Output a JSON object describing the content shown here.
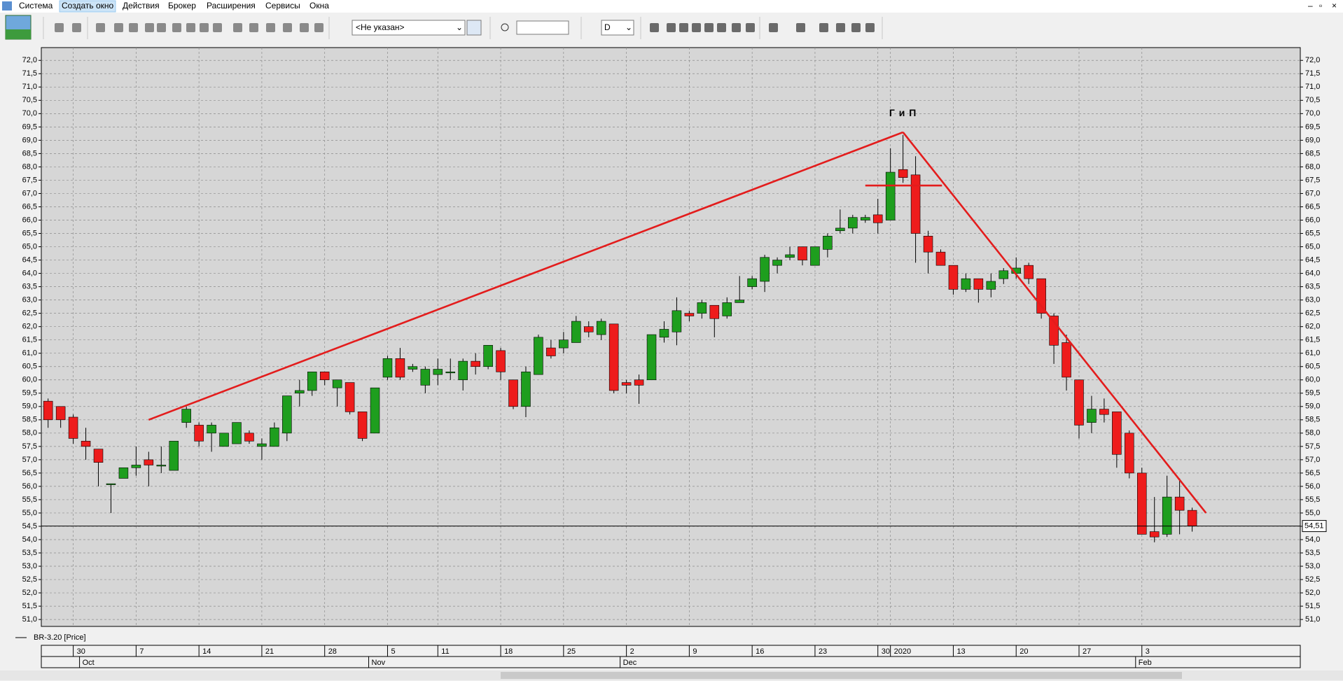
{
  "menu": [
    "Система",
    "Создать окно",
    "Действия",
    "Брокер",
    "Расширения",
    "Сервисы",
    "Окна"
  ],
  "toolbar": {
    "account": "<Не указан>",
    "period": "D"
  },
  "chart_data": {
    "type": "candlestick",
    "series": [
      {
        "name": "BR-3.20 [Price]",
        "up_color": "#1e9e1e",
        "down_color": "#ee1c1c",
        "open": [
          59.2,
          59.0,
          58.6,
          57.7,
          57.4,
          56.1,
          56.3,
          56.7,
          57.0,
          56.8,
          56.6,
          58.4,
          58.3,
          58.0,
          57.5,
          57.6,
          58.0,
          57.5,
          57.5,
          58.0,
          59.5,
          59.6,
          60.3,
          59.7,
          59.9,
          58.8,
          58.0,
          60.1,
          60.8,
          60.4,
          59.8,
          60.2,
          60.3,
          60.0,
          60.7,
          60.5,
          61.1,
          60.0,
          59.0,
          60.2,
          61.2,
          61.2,
          61.4,
          62.0,
          61.7,
          62.1,
          59.9,
          60.0,
          60.0,
          61.6,
          61.8,
          62.5,
          62.5,
          62.8,
          62.4,
          62.9,
          63.5,
          63.7,
          64.3,
          64.6,
          65.0,
          64.3,
          64.9,
          65.6,
          65.7,
          66.0,
          66.2,
          66.0,
          67.9,
          67.7,
          65.4,
          64.8,
          64.3,
          63.4,
          63.8,
          63.4,
          63.8,
          64.0,
          64.3,
          63.8,
          62.4,
          61.4,
          60.0,
          58.4,
          58.9,
          58.8,
          58.0,
          56.5,
          54.3,
          54.2,
          55.6,
          55.1
        ],
        "high": [
          59.3,
          59.0,
          58.7,
          58.2,
          57.4,
          56.1,
          56.7,
          57.5,
          57.3,
          57.5,
          57.7,
          59.0,
          58.4,
          58.4,
          58.0,
          58.4,
          58.1,
          57.8,
          58.4,
          59.4,
          60.0,
          60.3,
          60.3,
          60.0,
          59.9,
          58.8,
          59.7,
          60.9,
          61.2,
          60.6,
          60.5,
          60.8,
          60.8,
          60.8,
          61.0,
          61.3,
          61.2,
          60.0,
          60.5,
          61.7,
          61.5,
          61.8,
          62.4,
          62.2,
          62.3,
          62.1,
          60.0,
          60.2,
          61.7,
          62.2,
          63.1,
          62.6,
          63.0,
          62.8,
          63.1,
          63.9,
          63.9,
          64.7,
          64.6,
          65.0,
          65.0,
          65.0,
          65.5,
          66.4,
          66.2,
          66.2,
          66.8,
          68.7,
          69.2,
          68.4,
          65.6,
          64.9,
          64.3,
          64.0,
          63.8,
          64.0,
          64.2,
          64.6,
          64.4,
          63.8,
          62.5,
          61.7,
          60.0,
          59.4,
          59.3,
          58.8,
          58.1,
          56.7,
          55.6,
          56.4,
          56.3,
          55.2
        ],
        "low": [
          58.2,
          58.2,
          57.6,
          57.0,
          56.0,
          55.0,
          56.3,
          56.4,
          56.0,
          56.5,
          56.6,
          58.2,
          57.5,
          57.3,
          57.5,
          57.6,
          57.6,
          57.0,
          57.5,
          57.7,
          59.0,
          59.4,
          59.8,
          59.0,
          58.7,
          57.7,
          58.0,
          60.0,
          60.0,
          60.3,
          59.5,
          59.8,
          60.0,
          59.6,
          60.2,
          60.4,
          60.0,
          58.9,
          58.6,
          60.2,
          60.8,
          61.0,
          61.4,
          61.6,
          61.5,
          59.5,
          59.5,
          59.1,
          60.0,
          61.4,
          61.3,
          62.2,
          62.3,
          61.6,
          62.3,
          62.9,
          63.4,
          63.3,
          64.0,
          64.5,
          64.3,
          64.3,
          64.6,
          65.5,
          65.5,
          65.9,
          65.5,
          66.0,
          67.4,
          64.4,
          64.0,
          64.3,
          63.2,
          63.3,
          62.9,
          63.1,
          63.6,
          63.8,
          63.6,
          62.3,
          60.6,
          59.6,
          57.8,
          58.0,
          58.4,
          56.7,
          56.3,
          54.2,
          53.9,
          54.1,
          54.2,
          54.3
        ],
        "close": [
          58.5,
          58.5,
          57.8,
          57.5,
          56.9,
          56.1,
          56.7,
          56.8,
          56.8,
          56.8,
          57.7,
          58.9,
          57.7,
          58.3,
          58.0,
          58.4,
          57.7,
          57.6,
          58.2,
          59.4,
          59.6,
          60.3,
          60.0,
          60.0,
          58.8,
          57.8,
          59.7,
          60.8,
          60.1,
          60.5,
          60.4,
          60.4,
          60.3,
          60.7,
          60.5,
          61.3,
          60.3,
          59.0,
          60.3,
          61.6,
          60.9,
          61.5,
          62.2,
          61.8,
          62.2,
          59.6,
          59.8,
          59.8,
          61.7,
          61.9,
          62.6,
          62.4,
          62.9,
          62.3,
          62.9,
          63.0,
          63.8,
          64.6,
          64.5,
          64.7,
          64.5,
          65.0,
          65.4,
          65.7,
          66.1,
          66.1,
          65.9,
          67.8,
          67.6,
          65.5,
          64.8,
          64.3,
          63.4,
          63.8,
          63.4,
          63.7,
          64.1,
          64.2,
          63.8,
          62.5,
          61.3,
          60.1,
          58.3,
          58.9,
          58.7,
          57.2,
          56.5,
          54.2,
          54.1,
          55.6,
          55.1,
          54.51
        ]
      }
    ],
    "categories": [
      null,
      null,
      "30",
      null,
      null,
      null,
      null,
      "7",
      null,
      null,
      null,
      null,
      "14",
      null,
      null,
      null,
      null,
      "21",
      null,
      null,
      null,
      null,
      "28",
      null,
      null,
      null,
      null,
      "5",
      null,
      null,
      null,
      "11",
      null,
      null,
      null,
      null,
      "18",
      null,
      null,
      null,
      null,
      "25",
      null,
      null,
      null,
      null,
      "2",
      null,
      null,
      null,
      null,
      "9",
      null,
      null,
      null,
      null,
      "16",
      null,
      null,
      null,
      null,
      "23",
      null,
      null,
      null,
      null,
      "30",
      "2020",
      null,
      null,
      null,
      null,
      "13",
      null,
      null,
      null,
      null,
      "20",
      null,
      null,
      null,
      null,
      "27",
      null,
      null,
      null,
      null,
      "3",
      null,
      null,
      null,
      null
    ],
    "month_labels": [
      null,
      null,
      null,
      "Oct",
      null,
      null,
      null,
      null,
      null,
      null,
      null,
      null,
      null,
      null,
      null,
      null,
      null,
      null,
      null,
      null,
      null,
      null,
      null,
      null,
      null,
      null,
      "Nov",
      null,
      null,
      null,
      null,
      null,
      null,
      null,
      null,
      null,
      null,
      null,
      null,
      null,
      null,
      null,
      null,
      null,
      null,
      null,
      "Dec",
      null,
      null,
      null,
      null,
      null,
      null,
      null,
      null,
      null,
      null,
      null,
      null,
      null,
      null,
      null,
      null,
      null,
      null,
      null,
      null,
      null,
      null,
      null,
      null,
      null,
      null,
      null,
      null,
      null,
      null,
      null,
      null,
      null,
      null,
      null,
      null,
      null,
      null,
      null,
      null,
      "Feb",
      null,
      null,
      null,
      null
    ],
    "xlim": [
      -0.54,
      99.6
    ],
    "ylim": [
      50.74,
      72.48
    ],
    "yticks": [
      {
        "value": 51,
        "label": "51,0"
      },
      {
        "value": 51.5,
        "label": "51,5"
      },
      {
        "value": 52,
        "label": "52,0"
      },
      {
        "value": 52.5,
        "label": "52,5"
      },
      {
        "value": 53,
        "label": "53,0"
      },
      {
        "value": 53.5,
        "label": "53,5"
      },
      {
        "value": 54,
        "label": "54,0"
      },
      {
        "value": 54.5,
        "label": "54,5"
      },
      {
        "value": 55,
        "label": "55,0"
      },
      {
        "value": 55.5,
        "label": "55,5"
      },
      {
        "value": 56,
        "label": "56,0"
      },
      {
        "value": 56.5,
        "label": "56,5"
      },
      {
        "value": 57,
        "label": "57,0"
      },
      {
        "value": 57.5,
        "label": "57,5"
      },
      {
        "value": 58,
        "label": "58,0"
      },
      {
        "value": 58.5,
        "label": "58,5"
      },
      {
        "value": 59,
        "label": "59,0"
      },
      {
        "value": 59.5,
        "label": "59,5"
      },
      {
        "value": 60,
        "label": "60,0"
      },
      {
        "value": 60.5,
        "label": "60,5"
      },
      {
        "value": 61,
        "label": "61,0"
      },
      {
        "value": 61.5,
        "label": "61,5"
      },
      {
        "value": 62,
        "label": "62,0"
      },
      {
        "value": 62.5,
        "label": "62,5"
      },
      {
        "value": 63,
        "label": "63,0"
      },
      {
        "value": 63.5,
        "label": "63,5"
      },
      {
        "value": 64,
        "label": "64,0"
      },
      {
        "value": 64.5,
        "label": "64,5"
      },
      {
        "value": 65,
        "label": "65,0"
      },
      {
        "value": 65.5,
        "label": "65,5"
      },
      {
        "value": 66,
        "label": "66,0"
      },
      {
        "value": 66.5,
        "label": "66,5"
      },
      {
        "value": 67,
        "label": "67,0"
      },
      {
        "value": 67.5,
        "label": "67,5"
      },
      {
        "value": 68,
        "label": "68,0"
      },
      {
        "value": 68.5,
        "label": "68,5"
      },
      {
        "value": 69,
        "label": "69,0"
      },
      {
        "value": 69.5,
        "label": "69,5"
      },
      {
        "value": 70,
        "label": "70,0"
      },
      {
        "value": 70.5,
        "label": "70,5"
      },
      {
        "value": 71,
        "label": "71,0"
      },
      {
        "value": 71.5,
        "label": "71,5"
      },
      {
        "value": 72,
        "label": "72,0"
      }
    ],
    "grid": true,
    "last_price": {
      "value": 54.51,
      "label": "54,51"
    },
    "lines": [
      {
        "x": [
          8,
          68
        ],
        "y": [
          58.5,
          69.3
        ],
        "color": "#e31c1c"
      },
      {
        "x": [
          68,
          92.1
        ],
        "y": [
          69.3,
          55.0
        ],
        "color": "#e31c1c"
      },
      {
        "x": [
          65,
          71.1
        ],
        "y": [
          67.3,
          67.3
        ],
        "color": "#e31c1c"
      }
    ],
    "annotations": [
      {
        "text": "Г и П",
        "x": 68,
        "y": 70.0
      }
    ]
  }
}
